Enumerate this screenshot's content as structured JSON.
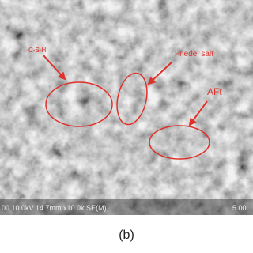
{
  "image": {
    "annotations": [
      "C-S-H",
      "Friedel salt",
      "AFt"
    ],
    "info_bar": {
      "settings": "00 10.0kV 14.7mm x10.0k SE(M)",
      "scale": "5.00"
    }
  },
  "caption": "(b)"
}
